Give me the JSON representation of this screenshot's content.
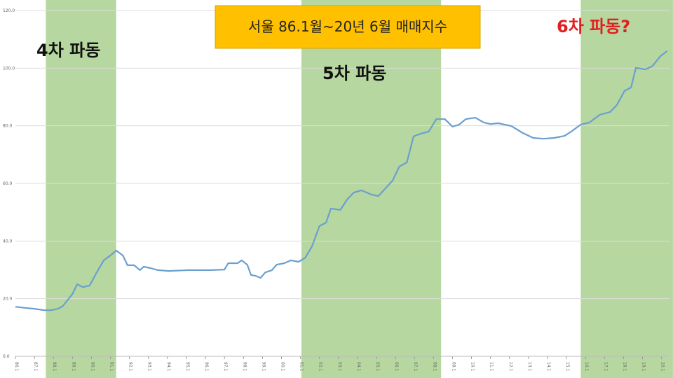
{
  "chart_data": {
    "type": "line",
    "title": "서울 86.1월~20년 6월 매매지수",
    "annotations": [
      {
        "text": "4차 파동",
        "color": "#111111"
      },
      {
        "text": "5차 파동",
        "color": "#111111"
      },
      {
        "text": "6차 파동?",
        "color": "#e02020"
      }
    ],
    "shaded_periods": [
      [
        1987.6,
        1991.3
      ],
      [
        2001.05,
        2008.4
      ],
      [
        2015.75,
        2020.6
      ]
    ],
    "shade_color": "#a9d08e",
    "grid": true,
    "ylim": [
      0,
      120
    ],
    "yticks": [
      {
        "value": 0,
        "label": "0.0"
      },
      {
        "value": 20,
        "label": "20.0"
      },
      {
        "value": 40,
        "label": "40.0"
      },
      {
        "value": 60,
        "label": "60.0"
      },
      {
        "value": 80,
        "label": "80.0"
      },
      {
        "value": 100,
        "label": "100.0"
      },
      {
        "value": 120,
        "label": "120.0"
      }
    ],
    "xlim": [
      1986.0,
      2020.42
    ],
    "xticks": [
      {
        "value": 1986,
        "label": "86.1"
      },
      {
        "value": 1987,
        "label": "87.1"
      },
      {
        "value": 1988,
        "label": "88.1"
      },
      {
        "value": 1989,
        "label": "89.1"
      },
      {
        "value": 1990,
        "label": "90.1"
      },
      {
        "value": 1991,
        "label": "91.1"
      },
      {
        "value": 1992,
        "label": "92.1"
      },
      {
        "value": 1993,
        "label": "93.1"
      },
      {
        "value": 1994,
        "label": "94.1"
      },
      {
        "value": 1995,
        "label": "95.1"
      },
      {
        "value": 1996,
        "label": "96.1"
      },
      {
        "value": 1997,
        "label": "97.1"
      },
      {
        "value": 1998,
        "label": "98.1"
      },
      {
        "value": 1999,
        "label": "99.1"
      },
      {
        "value": 2000,
        "label": "00.1"
      },
      {
        "value": 2001,
        "label": "01.1"
      },
      {
        "value": 2002,
        "label": "02.1"
      },
      {
        "value": 2003,
        "label": "03.1"
      },
      {
        "value": 2004,
        "label": "04.1"
      },
      {
        "value": 2005,
        "label": "05.1"
      },
      {
        "value": 2006,
        "label": "06.1"
      },
      {
        "value": 2007,
        "label": "07.1"
      },
      {
        "value": 2008,
        "label": "08.1"
      },
      {
        "value": 2009,
        "label": "09.1"
      },
      {
        "value": 2010,
        "label": "10.1"
      },
      {
        "value": 2011,
        "label": "11.1"
      },
      {
        "value": 2012,
        "label": "12.1"
      },
      {
        "value": 2013,
        "label": "13.1"
      },
      {
        "value": 2014,
        "label": "14.1"
      },
      {
        "value": 2015,
        "label": "15.1"
      },
      {
        "value": 2016,
        "label": "16.1"
      },
      {
        "value": 2017,
        "label": "17.1"
      },
      {
        "value": 2018,
        "label": "18.1"
      },
      {
        "value": 2019,
        "label": "19.1"
      },
      {
        "value": 2020,
        "label": "20.1"
      }
    ],
    "series": [
      {
        "color": "#6b9fcf",
        "x": [
          1986.0,
          1986.5,
          1987.0,
          1987.5,
          1987.9,
          1988.25,
          1988.5,
          1989.0,
          1989.25,
          1989.55,
          1989.9,
          1990.3,
          1990.65,
          1991.0,
          1991.3,
          1991.65,
          1991.9,
          1992.25,
          1992.55,
          1992.75,
          1993.1,
          1993.5,
          1994.05,
          1995.15,
          1996.25,
          1997.0,
          1997.2,
          1997.7,
          1997.9,
          1998.2,
          1998.4,
          1998.65,
          1998.9,
          1999.15,
          1999.5,
          1999.75,
          2000.15,
          2000.5,
          2000.9,
          2001.25,
          2001.6,
          2002.0,
          2002.35,
          2002.6,
          2003.1,
          2003.45,
          2003.8,
          2004.2,
          2004.75,
          2005.1,
          2005.5,
          2005.85,
          2006.2,
          2006.6,
          2006.95,
          2007.3,
          2007.75,
          2008.15,
          2008.6,
          2009.0,
          2009.35,
          2009.7,
          2010.2,
          2010.65,
          2011.0,
          2011.4,
          2012.1,
          2012.7,
          2013.25,
          2013.8,
          2014.35,
          2014.9,
          2015.25,
          2015.75,
          2016.2,
          2016.75,
          2017.3,
          2017.65,
          2018.05,
          2018.4,
          2018.65,
          2019.15,
          2019.5,
          2019.95,
          2020.3
        ],
        "values": [
          17.2,
          16.8,
          16.5,
          16.0,
          16.0,
          16.5,
          17.5,
          21.6,
          25.0,
          24.0,
          24.5,
          29.4,
          33.3,
          35.0,
          36.7,
          35.0,
          31.6,
          31.6,
          29.9,
          31.1,
          30.6,
          29.9,
          29.6,
          29.9,
          29.9,
          30.1,
          32.3,
          32.3,
          33.3,
          31.8,
          28.2,
          27.9,
          27.2,
          29.1,
          29.9,
          31.8,
          32.3,
          33.3,
          32.8,
          34.2,
          38.1,
          45.2,
          46.4,
          51.3,
          50.8,
          54.4,
          56.8,
          57.6,
          56.1,
          55.6,
          58.5,
          61.0,
          65.8,
          67.3,
          76.3,
          77.2,
          78.0,
          82.3,
          82.3,
          79.7,
          80.4,
          82.3,
          82.8,
          81.1,
          80.6,
          80.9,
          79.9,
          77.5,
          75.8,
          75.5,
          75.8,
          76.5,
          78.0,
          80.4,
          81.1,
          83.8,
          84.8,
          87.2,
          92.1,
          93.3,
          100.1,
          99.6,
          100.6,
          104.2,
          105.9
        ]
      }
    ]
  }
}
